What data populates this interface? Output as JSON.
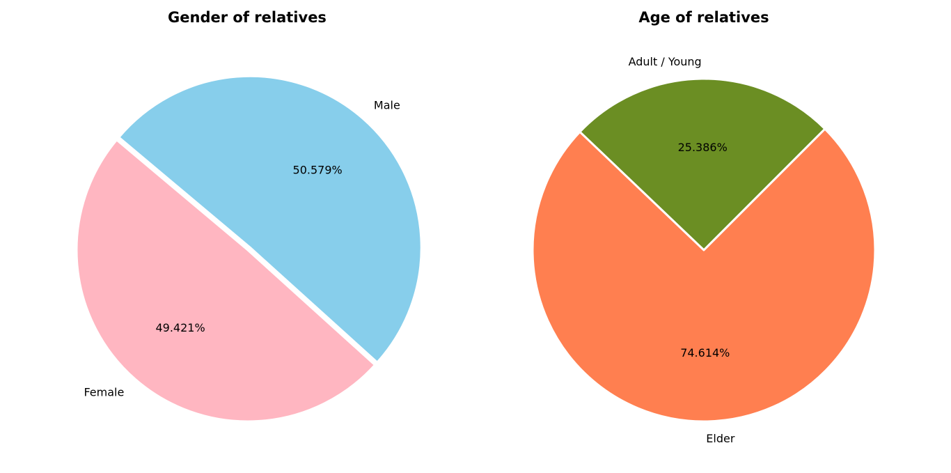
{
  "chart_data": [
    {
      "type": "pie",
      "title": "Gender of relatives",
      "start_angle_deg": 140,
      "direction": "counterclockwise",
      "explode": [
        0.0,
        0.02
      ],
      "slices": [
        {
          "label": "Female",
          "value": 49.421,
          "pct_label": "49.421%",
          "color": "#ffb6c1"
        },
        {
          "label": "Male",
          "value": 50.579,
          "pct_label": "50.579%",
          "color": "#87ceeb"
        }
      ]
    },
    {
      "type": "pie",
      "title": "Age of relatives",
      "start_angle_deg": 45,
      "direction": "counterclockwise",
      "explode": [
        0.0,
        0.0
      ],
      "slices": [
        {
          "label": "Adult / Young",
          "value": 25.386,
          "pct_label": "25.386%",
          "color": "#6b8e23"
        },
        {
          "label": "Elder",
          "value": 74.614,
          "pct_label": "74.614%",
          "color": "#ff7f50"
        }
      ]
    }
  ],
  "slice_edge_color": "#ffffff"
}
